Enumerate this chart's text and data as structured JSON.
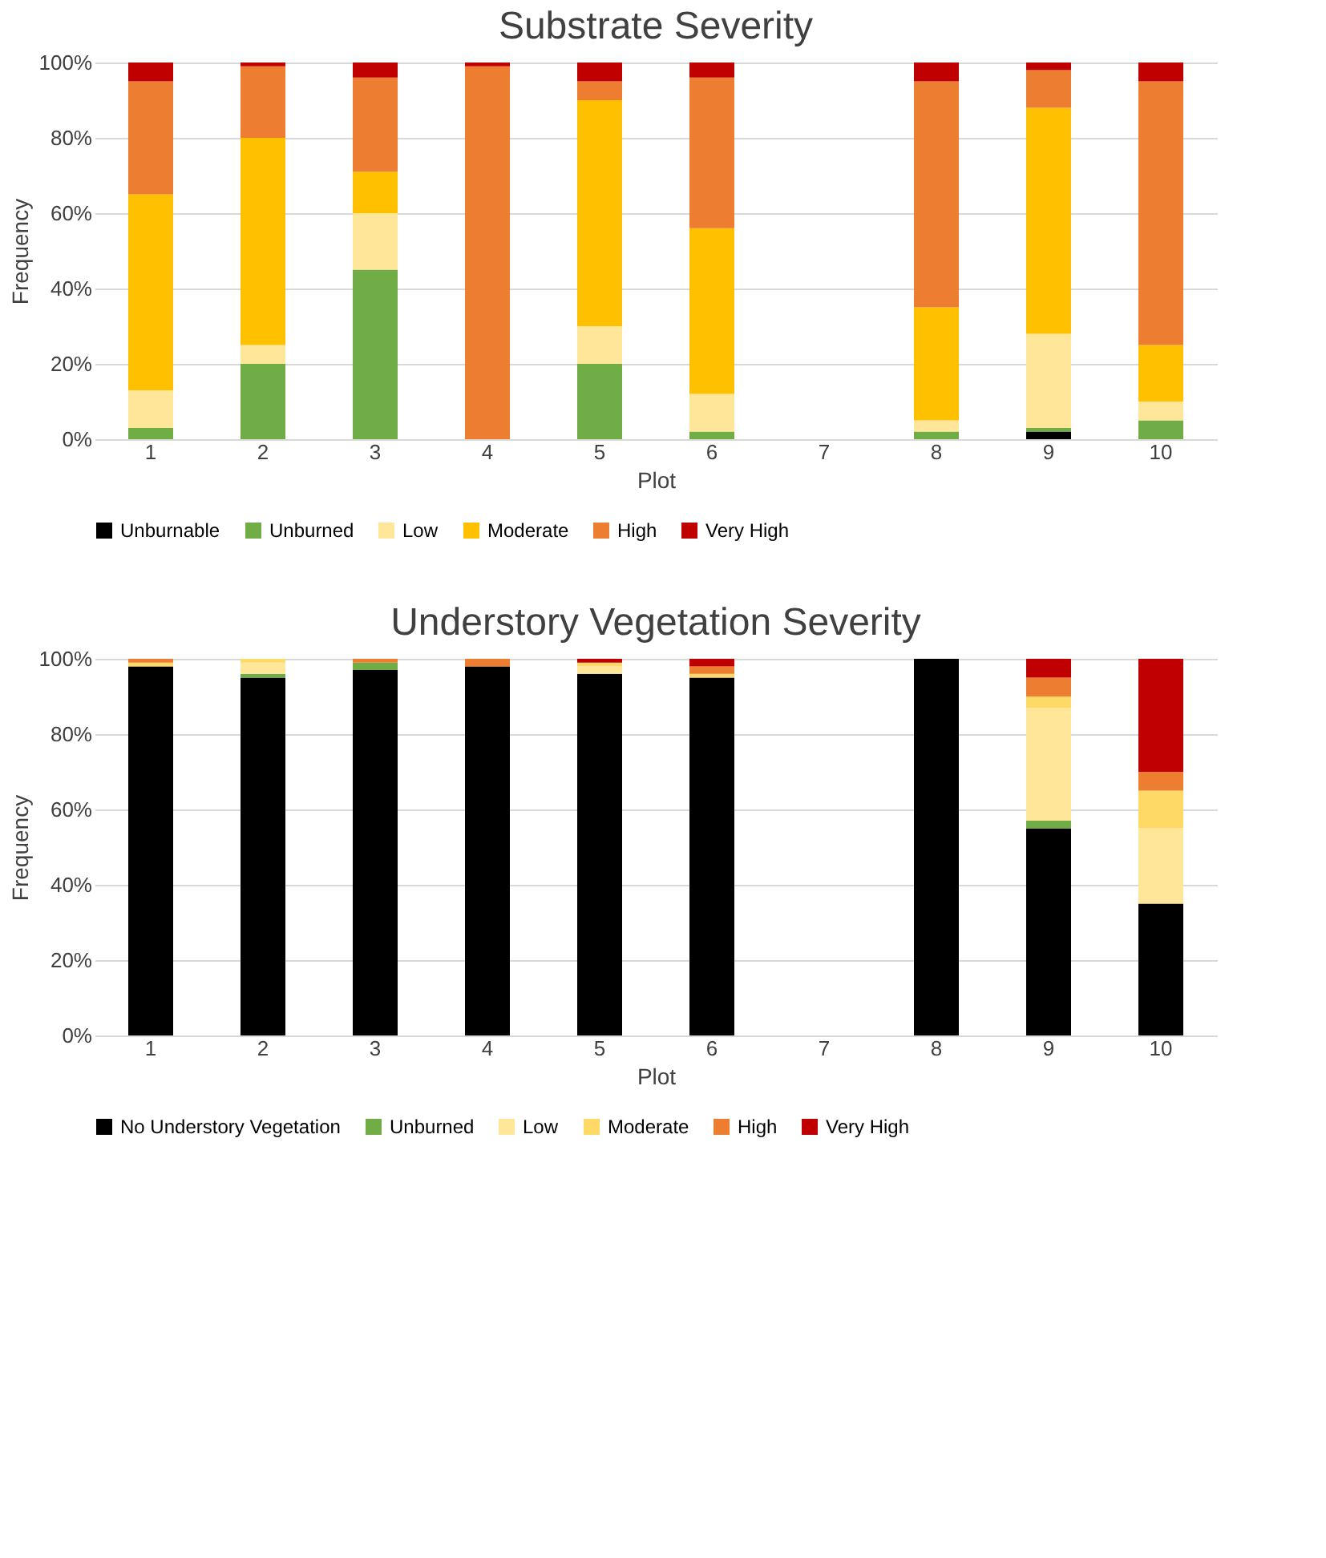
{
  "chart_data": [
    {
      "type": "bar",
      "title": "Substrate Severity",
      "xlabel": "Plot",
      "ylabel": "Frequency",
      "stacked": true,
      "legend": "bottom",
      "grid": "y",
      "categories": [
        "1",
        "2",
        "3",
        "4",
        "5",
        "6",
        "7",
        "8",
        "9",
        "10"
      ],
      "ylim": [
        0,
        100
      ],
      "yticks": [
        {
          "value": 0,
          "label": "0%"
        },
        {
          "value": 20,
          "label": "20%"
        },
        {
          "value": 40,
          "label": "40%"
        },
        {
          "value": 60,
          "label": "60%"
        },
        {
          "value": 80,
          "label": "80%"
        },
        {
          "value": 100,
          "label": "100%"
        }
      ],
      "series": [
        {
          "name": "Unburnable",
          "color": "#000000",
          "values": [
            0,
            0,
            0,
            0,
            0,
            0,
            null,
            0,
            2,
            0
          ]
        },
        {
          "name": "Unburned",
          "color": "#70ad47",
          "values": [
            3,
            20,
            45,
            0,
            20,
            2,
            null,
            2,
            1,
            5
          ]
        },
        {
          "name": "Low",
          "color": "#ffe699",
          "values": [
            10,
            5,
            15,
            0,
            10,
            10,
            null,
            3,
            25,
            5
          ]
        },
        {
          "name": "Moderate",
          "color": "#ffc000",
          "values": [
            52,
            55,
            11,
            0,
            60,
            44,
            null,
            30,
            60,
            15
          ]
        },
        {
          "name": "High",
          "color": "#ed7d31",
          "values": [
            30,
            19,
            25,
            99,
            5,
            40,
            null,
            60,
            10,
            70
          ]
        },
        {
          "name": "Very High",
          "color": "#c00000",
          "values": [
            5,
            1,
            4,
            1,
            5,
            4,
            null,
            5,
            2,
            5
          ]
        }
      ]
    },
    {
      "type": "bar",
      "title": "Understory Vegetation Severity",
      "xlabel": "Plot",
      "ylabel": "Frequency",
      "stacked": true,
      "legend": "bottom",
      "grid": "y",
      "categories": [
        "1",
        "2",
        "3",
        "4",
        "5",
        "6",
        "7",
        "8",
        "9",
        "10"
      ],
      "ylim": [
        0,
        100
      ],
      "yticks": [
        {
          "value": 0,
          "label": "0%"
        },
        {
          "value": 20,
          "label": "20%"
        },
        {
          "value": 40,
          "label": "40%"
        },
        {
          "value": 60,
          "label": "60%"
        },
        {
          "value": 80,
          "label": "80%"
        },
        {
          "value": 100,
          "label": "100%"
        }
      ],
      "series": [
        {
          "name": "No Understory Vegetation",
          "color": "#000000",
          "values": [
            98,
            95,
            97,
            98,
            96,
            95,
            null,
            100,
            55,
            35
          ]
        },
        {
          "name": "Unburned",
          "color": "#70ad47",
          "values": [
            0,
            1,
            2,
            0,
            0,
            0,
            null,
            0,
            2,
            0
          ]
        },
        {
          "name": "Low",
          "color": "#ffe699",
          "values": [
            0,
            3,
            0,
            0,
            2,
            0,
            null,
            0,
            30,
            20
          ]
        },
        {
          "name": "Moderate",
          "color": "#ffd966",
          "values": [
            1,
            1,
            0,
            0,
            1,
            1,
            null,
            0,
            3,
            10
          ]
        },
        {
          "name": "High",
          "color": "#ed7d31",
          "values": [
            1,
            0,
            1,
            2,
            0,
            2,
            null,
            0,
            5,
            5
          ]
        },
        {
          "name": "Very High",
          "color": "#c00000",
          "values": [
            0,
            0,
            0,
            0,
            1,
            2,
            null,
            0,
            5,
            30
          ]
        }
      ]
    }
  ]
}
